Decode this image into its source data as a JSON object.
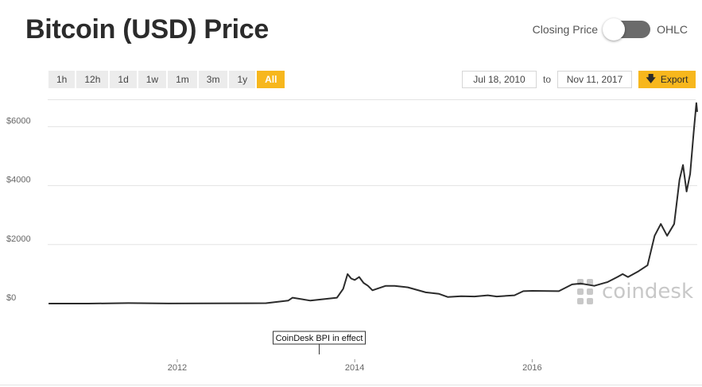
{
  "header": {
    "title": "Bitcoin (USD) Price",
    "toggle_left": "Closing Price",
    "toggle_right": "OHLC"
  },
  "range_buttons": [
    "1h",
    "12h",
    "1d",
    "1w",
    "1m",
    "3m",
    "1y",
    "All"
  ],
  "active_range": "All",
  "date_range": {
    "from": "Jul 18, 2010",
    "to_label": "to",
    "to": "Nov 11, 2017"
  },
  "export_label": "Export",
  "colors": {
    "accent": "#f7b71d",
    "line": "#2b2b2b",
    "grid": "#e3e3e3",
    "watermark": "#c8c8c8"
  },
  "watermark": {
    "text": "coindesk",
    "icon": "coindesk-logo-icon"
  },
  "annotation": {
    "text": "CoinDesk BPI in effect",
    "x": 2013.6
  },
  "chart_data": {
    "type": "line",
    "title": "Bitcoin (USD) Price",
    "xlabel": "",
    "ylabel": "",
    "x_ticks": [
      "2012",
      "2014",
      "2016"
    ],
    "x_tick_values": [
      2012,
      2014,
      2016
    ],
    "y_ticks": [
      "$0",
      "$2000",
      "$4000",
      "$6000"
    ],
    "y_tick_values": [
      0,
      2000,
      4000,
      6000
    ],
    "xlim": [
      2010.54,
      2017.86
    ],
    "ylim": [
      0,
      6900
    ],
    "grid": true,
    "series": [
      {
        "values": [
          [
            2010.55,
            0.1
          ],
          [
            2011.0,
            0.3
          ],
          [
            2011.45,
            15
          ],
          [
            2011.9,
            3
          ],
          [
            2012.3,
            5
          ],
          [
            2012.8,
            12
          ],
          [
            2013.0,
            14
          ],
          [
            2013.25,
            100
          ],
          [
            2013.3,
            200
          ],
          [
            2013.5,
            100
          ],
          [
            2013.8,
            200
          ],
          [
            2013.87,
            500
          ],
          [
            2013.92,
            1000
          ],
          [
            2013.96,
            850
          ],
          [
            2014.0,
            800
          ],
          [
            2014.05,
            900
          ],
          [
            2014.1,
            700
          ],
          [
            2014.15,
            600
          ],
          [
            2014.2,
            450
          ],
          [
            2014.35,
            600
          ],
          [
            2014.45,
            600
          ],
          [
            2014.6,
            550
          ],
          [
            2014.8,
            380
          ],
          [
            2014.95,
            330
          ],
          [
            2015.05,
            220
          ],
          [
            2015.2,
            250
          ],
          [
            2015.35,
            240
          ],
          [
            2015.5,
            280
          ],
          [
            2015.6,
            240
          ],
          [
            2015.8,
            280
          ],
          [
            2015.9,
            420
          ],
          [
            2016.0,
            430
          ],
          [
            2016.3,
            420
          ],
          [
            2016.45,
            650
          ],
          [
            2016.55,
            680
          ],
          [
            2016.7,
            600
          ],
          [
            2016.85,
            730
          ],
          [
            2016.96,
            900
          ],
          [
            2017.02,
            1000
          ],
          [
            2017.08,
            900
          ],
          [
            2017.2,
            1100
          ],
          [
            2017.3,
            1300
          ],
          [
            2017.38,
            2300
          ],
          [
            2017.45,
            2700
          ],
          [
            2017.52,
            2300
          ],
          [
            2017.6,
            2700
          ],
          [
            2017.66,
            4200
          ],
          [
            2017.7,
            4700
          ],
          [
            2017.74,
            3800
          ],
          [
            2017.78,
            4400
          ],
          [
            2017.82,
            5800
          ],
          [
            2017.85,
            6800
          ],
          [
            2017.86,
            6500
          ]
        ]
      }
    ]
  }
}
